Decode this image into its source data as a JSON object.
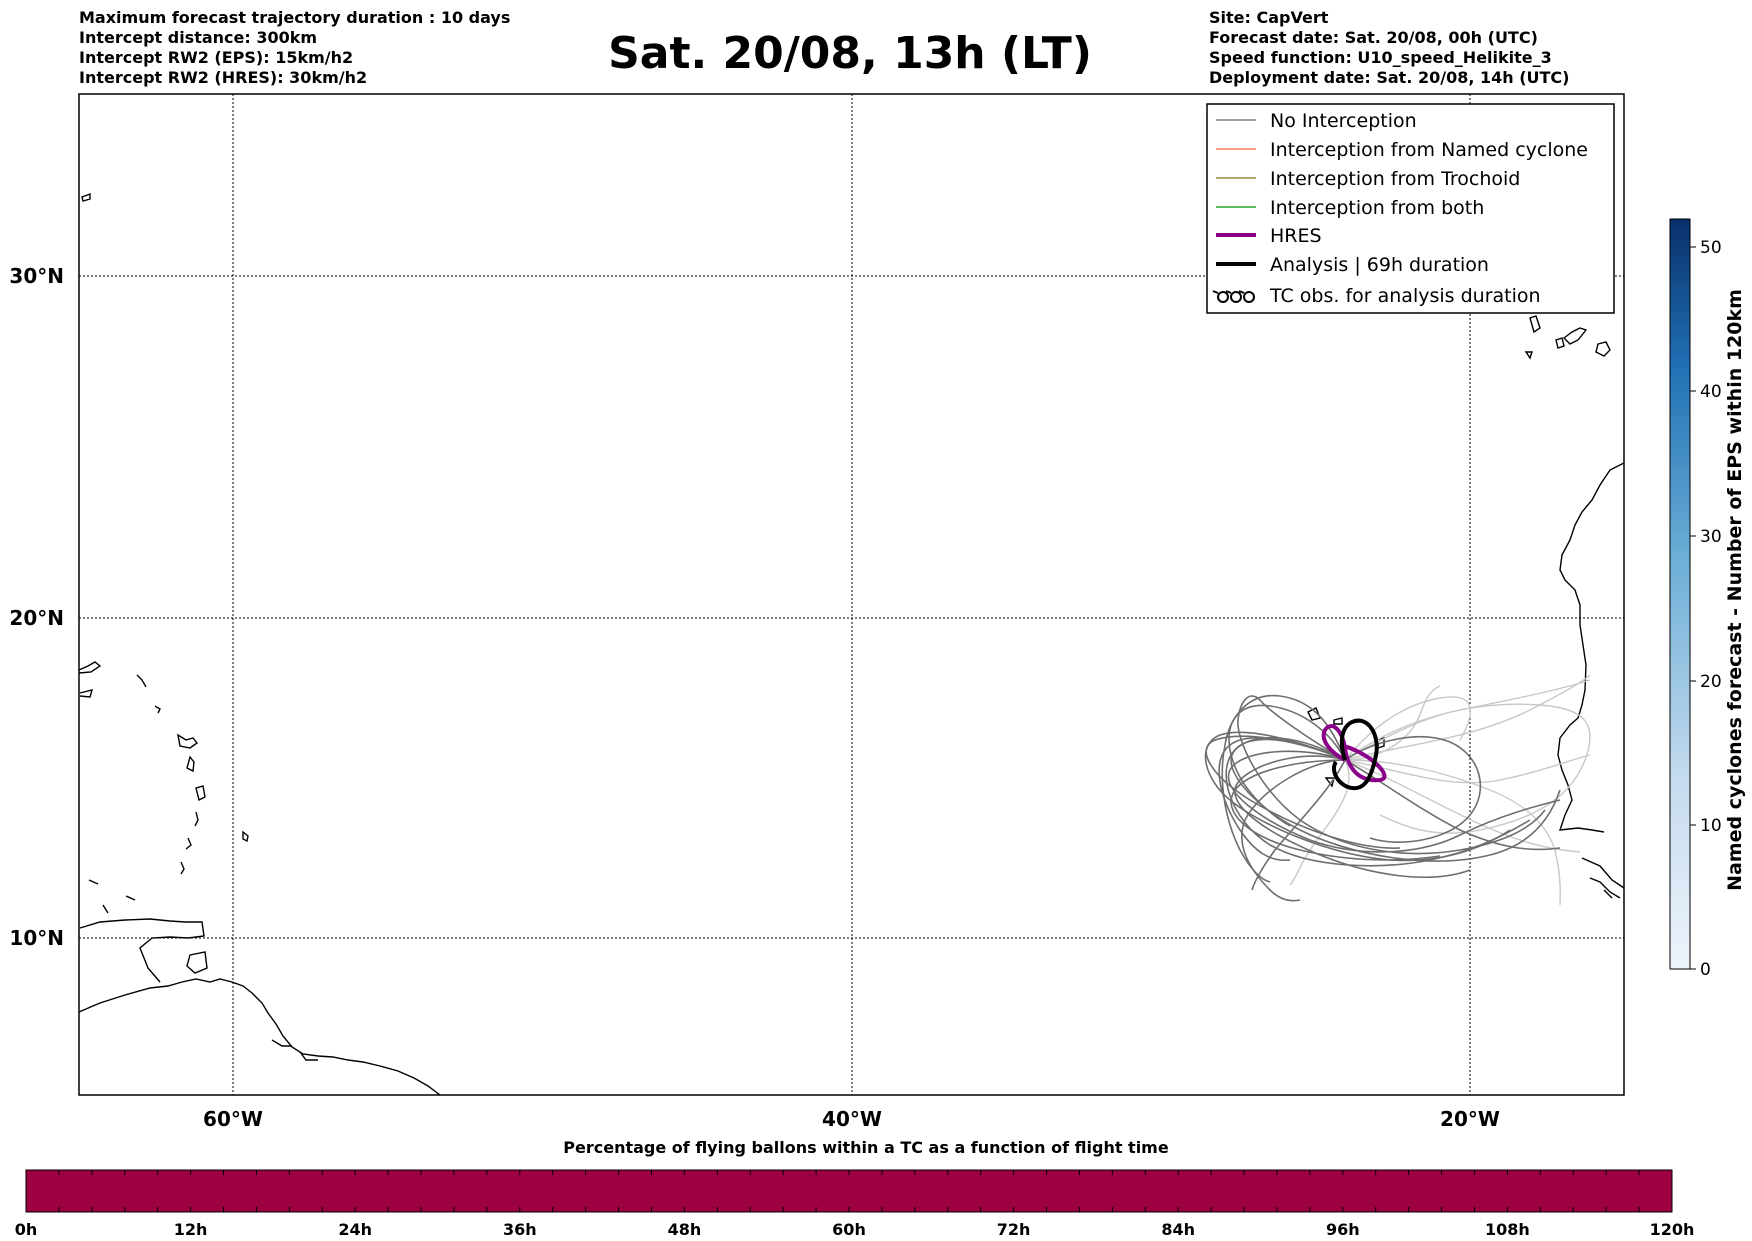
{
  "header": {
    "left_lines": [
      "Maximum forecast trajectory duration : 10 days",
      "Intercept distance: 300km",
      "Intercept RW2 (EPS):  15km/h2",
      "Intercept RW2 (HRES): 30km/h2"
    ],
    "title": "Sat. 20/08, 13h (LT)",
    "right_lines": [
      "Site: CapVert",
      "Forecast date: Sat. 20/08, 00h (UTC)",
      "Speed function: U10_speed_Helikite_3",
      "Deployment date: Sat. 20/08, 14h (UTC)"
    ]
  },
  "map": {
    "lon_labels": [
      "60°W",
      "40°W",
      "20°W"
    ],
    "lat_labels": [
      "30°N",
      "20°N",
      "10°N"
    ]
  },
  "legend": {
    "items": [
      {
        "label": "No Interception",
        "color": "#808080"
      },
      {
        "label": "Interception from Named cyclone",
        "color": "#ff7f50"
      },
      {
        "label": "Interception from Trochoid",
        "color": "#9a8c3a"
      },
      {
        "label": "Interception from both",
        "color": "#2ca02c"
      },
      {
        "label": "HRES",
        "color": "#8b008b"
      },
      {
        "label": "Analysis | 69h duration",
        "color": "#000000"
      },
      {
        "label": "TC obs. for analysis duration",
        "icon": "cyclone-symbols"
      }
    ]
  },
  "colorbar_right": {
    "label": "Named cyclones forecast - Number of EPS within 120km",
    "ticks": [
      "0",
      "10",
      "20",
      "30",
      "40",
      "50"
    ]
  },
  "colorbar_bottom": {
    "title": "Percentage of flying ballons within a TC as a function of flight time",
    "fill_color": "#9e0142",
    "ticks": [
      "0h",
      "12h",
      "24h",
      "36h",
      "48h",
      "60h",
      "72h",
      "84h",
      "96h",
      "108h",
      "120h"
    ]
  }
}
